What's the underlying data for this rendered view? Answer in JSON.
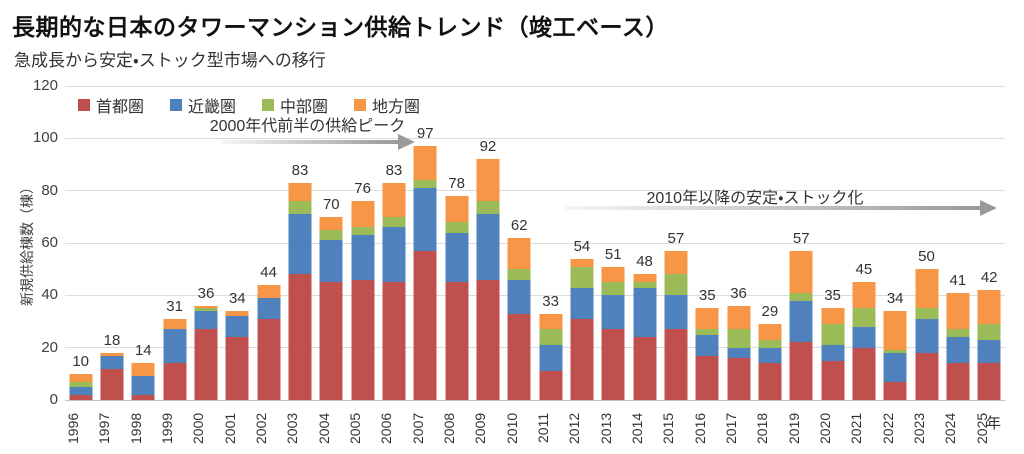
{
  "page": {
    "title": "長期的な日本のタワーマンション供給トレンド（竣工ベース）",
    "subtitle": "急成長から安定・ストック型市場への移行"
  },
  "axes": {
    "y_title": "新規供給棟数（棟）",
    "x_unit": "年"
  },
  "annotations": {
    "peak": "2000年代前半の供給ピーク",
    "stock": "2010年以降の安定・ストック化"
  },
  "colors": {
    "shutoken": "#C0504D",
    "kinkiken": "#4F81BD",
    "chubuken": "#9BBB59",
    "chihoken": "#F79646",
    "gridline": "#dcdcdc",
    "arrow": "#9a9a9a"
  },
  "chart_data": {
    "type": "bar",
    "stacked": true,
    "title": "長期的な日本のタワーマンション供給トレンド（竣工ベース）",
    "subtitle": "急成長から安定・ストック型市場への移行",
    "ylabel": "新規供給棟数（棟）",
    "xlabel": "年",
    "ylim": [
      0,
      120
    ],
    "yticks": [
      0,
      20,
      40,
      60,
      80,
      100,
      120
    ],
    "grid": true,
    "legend_position": "top-left-inside",
    "categories": [
      "1996",
      "1997",
      "1998",
      "1999",
      "2000",
      "2001",
      "2002",
      "2003",
      "2004",
      "2005",
      "2006",
      "2007",
      "2008",
      "2009",
      "2010",
      "2011",
      "2012",
      "2013",
      "2014",
      "2015",
      "2016",
      "2017",
      "2018",
      "2019",
      "2020",
      "2021",
      "2022",
      "2023",
      "2024",
      "2025"
    ],
    "series": [
      {
        "name": "首都圏",
        "color": "#C0504D",
        "values": [
          2,
          12,
          2,
          14,
          27,
          24,
          31,
          48,
          45,
          46,
          45,
          57,
          45,
          46,
          33,
          11,
          31,
          27,
          24,
          27,
          17,
          16,
          14,
          22,
          15,
          20,
          7,
          18,
          14,
          14
        ]
      },
      {
        "name": "近畿圏",
        "color": "#4F81BD",
        "values": [
          3,
          5,
          7,
          13,
          7,
          8,
          8,
          23,
          16,
          17,
          21,
          24,
          19,
          25,
          13,
          10,
          12,
          13,
          19,
          13,
          8,
          4,
          6,
          16,
          6,
          8,
          11,
          13,
          10,
          9
        ]
      },
      {
        "name": "中部圏",
        "color": "#9BBB59",
        "values": [
          2,
          0,
          0,
          0,
          1,
          0,
          0,
          5,
          4,
          3,
          4,
          3,
          4,
          5,
          4,
          6,
          8,
          5,
          2,
          8,
          2,
          7,
          3,
          3,
          8,
          7,
          1,
          4,
          3,
          6
        ]
      },
      {
        "name": "地方圏",
        "color": "#F79646",
        "values": [
          3,
          1,
          5,
          4,
          1,
          2,
          5,
          7,
          5,
          10,
          13,
          13,
          10,
          16,
          12,
          6,
          3,
          6,
          3,
          9,
          8,
          9,
          6,
          16,
          6,
          10,
          15,
          15,
          14,
          13
        ]
      }
    ],
    "totals": [
      10,
      18,
      14,
      31,
      36,
      34,
      44,
      83,
      70,
      76,
      83,
      97,
      78,
      92,
      62,
      33,
      54,
      51,
      48,
      57,
      35,
      36,
      29,
      57,
      35,
      45,
      34,
      50,
      41,
      42
    ],
    "annotations": [
      {
        "text": "2000年代前半の供給ピーク",
        "arrow_direction": "right",
        "points_to_year": "2007"
      },
      {
        "text": "2010年以降の安定・ストック化",
        "arrow_direction": "right",
        "period": "2010-2025"
      }
    ]
  }
}
